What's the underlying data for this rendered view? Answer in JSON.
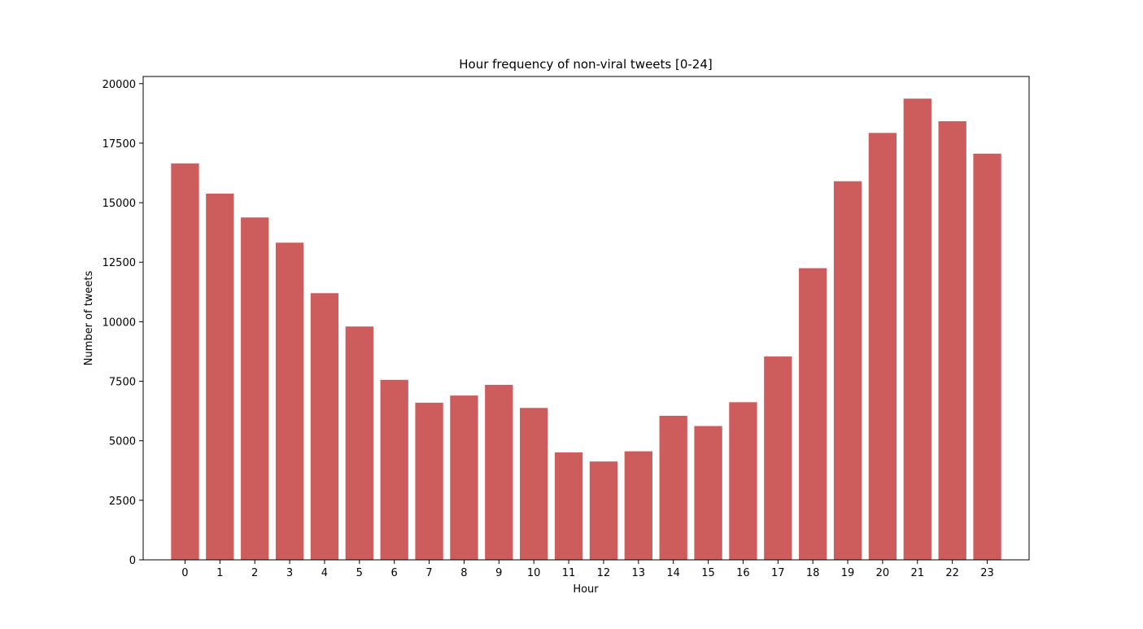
{
  "chart_data": {
    "type": "bar",
    "title": "Hour frequency of non-viral tweets [0-24]",
    "xlabel": "Hour",
    "ylabel": "Number of tweets",
    "categories": [
      "0",
      "1",
      "2",
      "3",
      "4",
      "5",
      "6",
      "7",
      "8",
      "9",
      "10",
      "11",
      "12",
      "13",
      "14",
      "15",
      "16",
      "17",
      "18",
      "19",
      "20",
      "21",
      "22",
      "23"
    ],
    "values": [
      16650,
      15380,
      14380,
      13320,
      11200,
      9800,
      7560,
      6600,
      6900,
      7350,
      6380,
      4510,
      4130,
      4560,
      6050,
      5620,
      6620,
      8540,
      12250,
      15900,
      17930,
      19370,
      18420,
      17060
    ],
    "ylim": [
      0,
      20300
    ],
    "yticks": [
      0,
      2500,
      5000,
      7500,
      10000,
      12500,
      15000,
      17500,
      20000
    ],
    "bar_color": "#cd5c5c",
    "grid": false,
    "legend": "none"
  }
}
